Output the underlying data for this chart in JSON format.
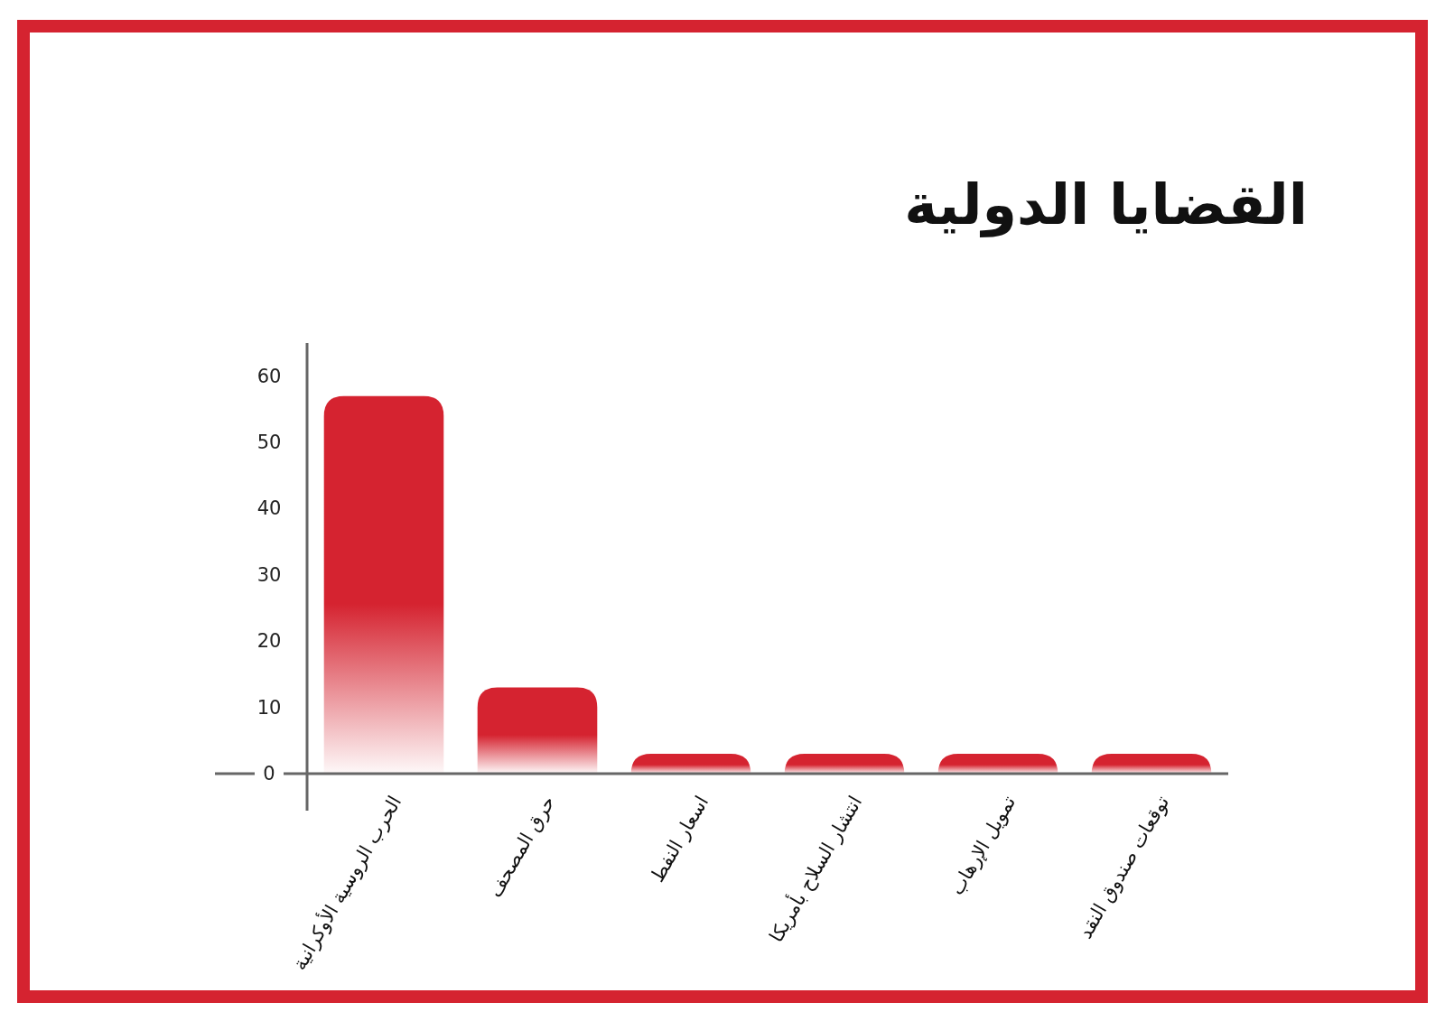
{
  "chart_data": {
    "type": "bar",
    "title": "القضايا الدولية",
    "categories": [
      "الحرب الروسية الأوكرانية",
      "حرق المصحف",
      "اسعار النفط",
      "انتشار السلاح بأمريكا",
      "تمويل الإرهاب",
      "توقعات صندوق النقد"
    ],
    "values": [
      57,
      13,
      3,
      3,
      3,
      3
    ],
    "color": "#d52330",
    "ylim": [
      0,
      65
    ],
    "yticks": [
      0,
      10,
      20,
      30,
      40,
      50,
      60
    ],
    "grid": false
  }
}
